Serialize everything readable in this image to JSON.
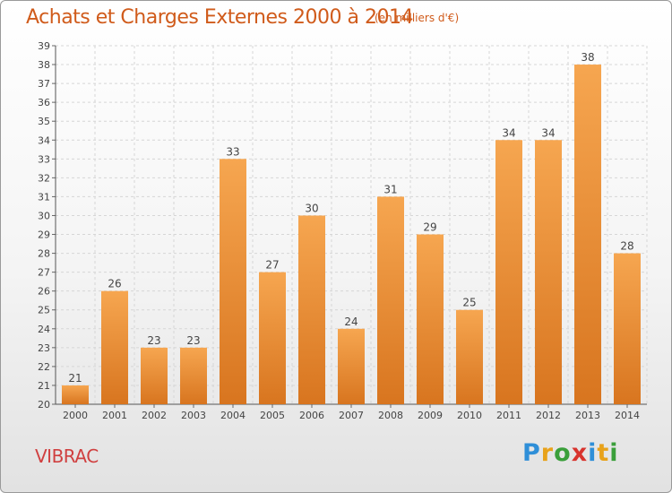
{
  "header": {
    "title": "Achats et Charges Externes 2000 à 2014",
    "subtitle": "(en milliers d'€)"
  },
  "commune": "VIBRAC",
  "logo": {
    "letters": [
      "P",
      "r",
      "o",
      "x",
      "i",
      "t",
      "i"
    ],
    "colors": [
      "#2f8fd8",
      "#e8a21a",
      "#3a9f3a",
      "#d8342e",
      "#2f8fd8",
      "#e8a21a",
      "#3a9f3a"
    ]
  },
  "colors": {
    "bar_light": "#f6a650",
    "bar_dark": "#d8751f",
    "title": "#d05b1b"
  },
  "chart_data": {
    "type": "bar",
    "title": "Achats et Charges Externes 2000 à 2014",
    "subtitle": "(en milliers d'€)",
    "categories": [
      "2000",
      "2001",
      "2002",
      "2003",
      "2004",
      "2005",
      "2006",
      "2007",
      "2008",
      "2009",
      "2010",
      "2011",
      "2012",
      "2013",
      "2014"
    ],
    "values": [
      21,
      26,
      23,
      23,
      33,
      27,
      30,
      24,
      31,
      29,
      25,
      34,
      34,
      38,
      28
    ],
    "ylim": [
      20,
      39
    ],
    "yticks": [
      20,
      21,
      22,
      23,
      24,
      25,
      26,
      27,
      28,
      29,
      30,
      31,
      32,
      33,
      34,
      35,
      36,
      37,
      38,
      39
    ],
    "grid": true,
    "data_labels": true
  }
}
